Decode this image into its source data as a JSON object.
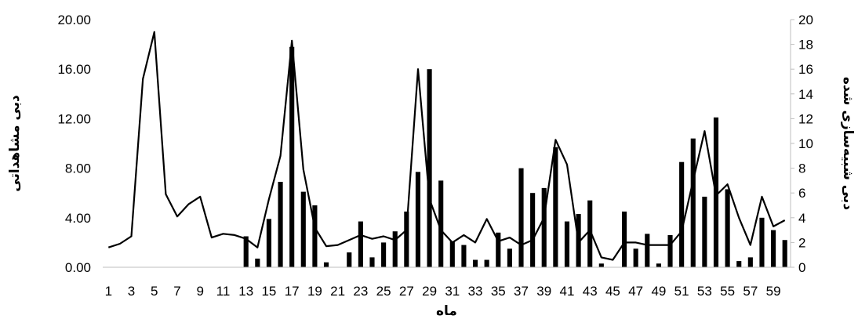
{
  "chart_data": {
    "type": "bar",
    "xlabel": "ماه",
    "ylabel_left": "دبی مشاهداتی",
    "ylabel_right": "دبی شبیه‌سازی شده",
    "x": [
      1,
      2,
      3,
      4,
      5,
      6,
      7,
      8,
      9,
      10,
      11,
      12,
      13,
      14,
      15,
      16,
      17,
      18,
      19,
      20,
      21,
      22,
      23,
      24,
      25,
      26,
      27,
      28,
      29,
      30,
      31,
      32,
      33,
      34,
      35,
      36,
      37,
      38,
      39,
      40,
      41,
      42,
      43,
      44,
      45,
      46,
      47,
      48,
      49,
      50,
      51,
      52,
      53,
      54,
      55,
      56,
      57,
      58,
      59,
      60
    ],
    "x_tick_labels": [
      "1",
      "3",
      "5",
      "7",
      "9",
      "11",
      "13",
      "15",
      "17",
      "19",
      "21",
      "23",
      "25",
      "27",
      "29",
      "31",
      "33",
      "35",
      "37",
      "39",
      "41",
      "43",
      "45",
      "47",
      "49",
      "51",
      "53",
      "55",
      "57",
      "59"
    ],
    "y_left_ticks": [
      "0.00",
      "4.00",
      "8.00",
      "12.00",
      "16.00",
      "20.00"
    ],
    "y_left_lim": [
      0,
      20
    ],
    "y_right_ticks": [
      "0",
      "2",
      "4",
      "6",
      "8",
      "10",
      "12",
      "14",
      "16",
      "18",
      "20"
    ],
    "y_right_lim": [
      0,
      20
    ],
    "grid": false,
    "series": [
      {
        "kind": "bar",
        "axis": "left",
        "values": [
          0,
          0,
          0,
          0,
          0,
          0,
          0,
          0,
          0,
          0,
          0,
          0,
          2.5,
          0.7,
          3.9,
          6.9,
          17.8,
          6.1,
          5.0,
          0.4,
          0,
          1.2,
          3.7,
          0.8,
          2.0,
          2.9,
          4.5,
          7.7,
          16.0,
          7.0,
          2.1,
          1.8,
          0.6,
          0.6,
          2.8,
          1.5,
          8.0,
          6.0,
          6.4,
          9.7,
          3.7,
          4.3,
          5.4,
          0.3,
          0,
          4.5,
          1.5,
          2.7,
          0.3,
          2.6,
          8.5,
          10.4,
          5.7,
          12.1,
          6.3,
          0.5,
          0.8,
          4.0,
          3.0,
          2.2
        ]
      },
      {
        "kind": "line",
        "axis": "right",
        "values": [
          1.6,
          1.9,
          2.5,
          15.2,
          19.0,
          5.9,
          4.1,
          5.1,
          5.7,
          2.4,
          2.7,
          2.6,
          2.3,
          1.6,
          5.5,
          9.0,
          18.3,
          7.9,
          3.2,
          1.7,
          1.8,
          2.2,
          2.6,
          2.3,
          2.5,
          2.2,
          3.0,
          16.0,
          5.5,
          3.0,
          2.0,
          2.6,
          2.0,
          3.9,
          2.1,
          2.4,
          1.8,
          2.2,
          4.0,
          10.3,
          8.3,
          2.0,
          3.0,
          0.8,
          0.6,
          2.0,
          2.0,
          1.8,
          1.8,
          1.8,
          2.9,
          7.0,
          11.0,
          5.8,
          6.7,
          4.0,
          1.8,
          5.7,
          3.3,
          3.8
        ]
      }
    ]
  }
}
